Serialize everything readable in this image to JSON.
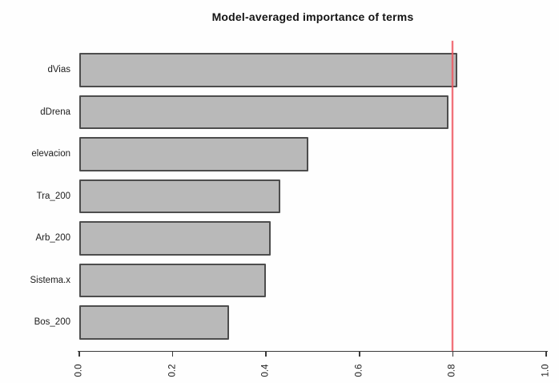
{
  "title": "Model-averaged importance of terms",
  "chart_data": {
    "type": "bar",
    "orientation": "horizontal",
    "title": "Model-averaged importance of terms",
    "categories": [
      "dVias",
      "dDrena",
      "elevacion",
      "Tra_200",
      "Arb_200",
      "Sistema.x",
      "Bos_200"
    ],
    "values": [
      0.81,
      0.79,
      0.49,
      0.43,
      0.41,
      0.4,
      0.32
    ],
    "xlabel": "",
    "ylabel": "",
    "xlim": [
      0,
      1
    ],
    "x_tick_labels": [
      "0.0",
      "0.2",
      "0.4",
      "0.6",
      "0.8",
      "1.0"
    ],
    "x_tick_values": [
      0,
      0.2,
      0.4,
      0.6,
      0.8,
      1.0
    ],
    "x_tick_label_rotation_deg": -90,
    "reference_line": {
      "value": 0.8,
      "color": "#ef5a63"
    },
    "bar_fill_color": "#b9b9b9",
    "bar_border_color": "#4d4d4d",
    "grid": false,
    "legend": null
  }
}
